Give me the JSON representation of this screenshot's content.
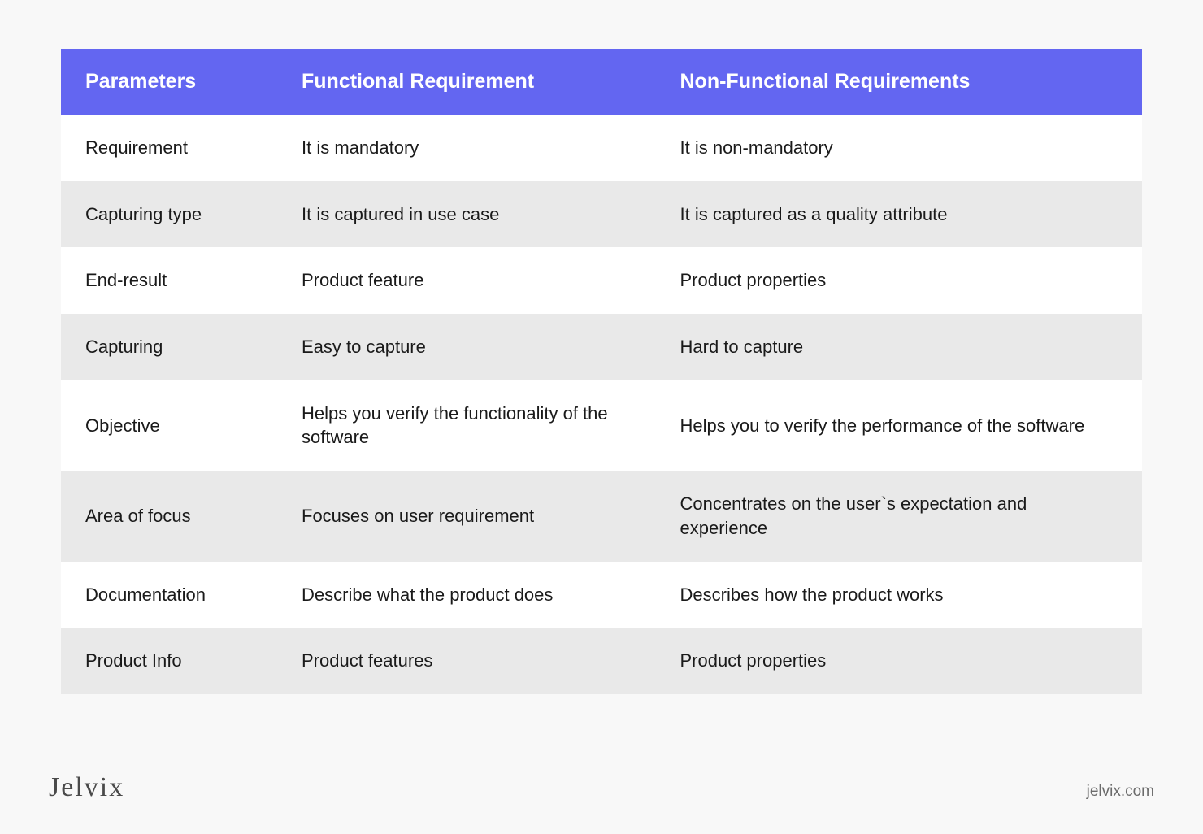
{
  "table": {
    "type": "table",
    "header_bg_color": "#6366f1",
    "header_text_color": "#ffffff",
    "row_alt_color": "#e9e9e9",
    "row_color": "#ffffff",
    "body_text_color": "#1a1a1a",
    "background_color": "#f8f8f8",
    "col_widths_pct": [
      20,
      35,
      45
    ],
    "header_fontsize": 25,
    "body_fontsize": 22,
    "columns": [
      "Parameters",
      "Functional Requirement",
      "Non-Functional Requirements"
    ],
    "rows": [
      [
        "Requirement",
        "It is mandatory",
        "It is non-mandatory"
      ],
      [
        "Capturing type",
        "It is captured in use case",
        "It is captured as a quality attribute"
      ],
      [
        "End-result",
        "Product feature",
        "Product properties"
      ],
      [
        "Capturing",
        "Easy to capture",
        "Hard to capture"
      ],
      [
        "Objective",
        "Helps you verify the functionality of the software",
        "Helps you to verify the performance of the software"
      ],
      [
        "Area of focus",
        "Focuses on user requirement",
        "Concentrates on the user`s expectation and experience"
      ],
      [
        "Documentation",
        "Describe what the product does",
        "Describes how the product works"
      ],
      [
        "Product Info",
        "Product features",
        "Product properties"
      ]
    ]
  },
  "footer": {
    "logo_text": "Jelvix",
    "site_url": "jelvix.com",
    "logo_color": "#4a4a4a",
    "url_color": "#6b6b6b"
  }
}
